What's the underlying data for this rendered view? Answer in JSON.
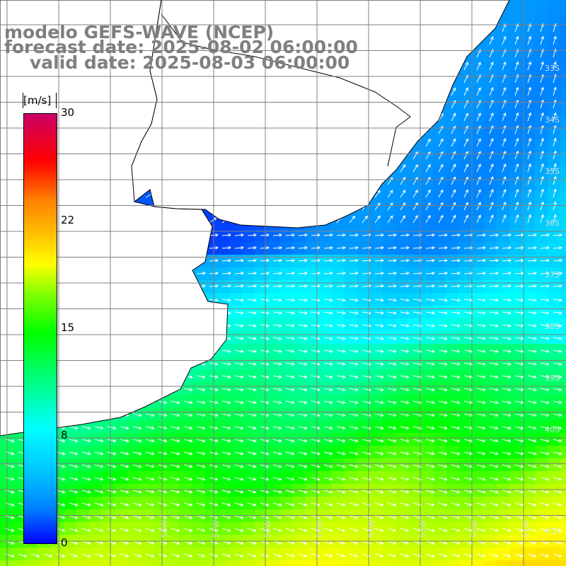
{
  "title": {
    "line1": "modelo GEFS-WAVE (NCEP)",
    "line2": "forecast date: 2025-08-02 06:00:00",
    "line3": "valid date: 2025-08-03 06:00:00"
  },
  "colorbar": {
    "unit": "[m/s]",
    "ticks": [
      "30",
      "22",
      "15",
      "8",
      "0"
    ],
    "colors": [
      "#0000ff",
      "#00ffff",
      "#00ff00",
      "#ffff00",
      "#ff0000",
      "#cc0066"
    ]
  },
  "map": {
    "lat_labels": [
      "33S",
      "34S",
      "35S",
      "36S",
      "37S",
      "38S",
      "39S",
      "40S",
      "41S"
    ],
    "lon_labels": [
      "58W",
      "57W",
      "56W",
      "55W",
      "54W",
      "53W",
      "52W",
      "51W"
    ],
    "grid_visible": true,
    "field": "wind speed with direction arrows",
    "land_color": "#ffffff"
  }
}
